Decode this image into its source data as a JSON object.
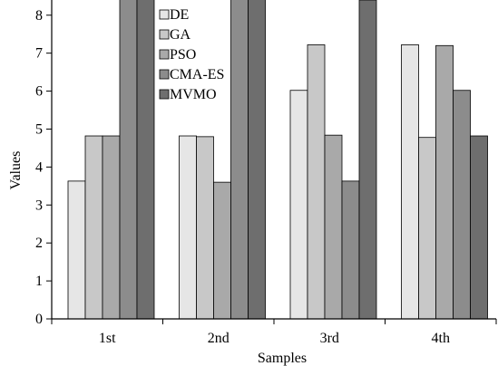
{
  "chart_data": {
    "type": "bar",
    "title": "",
    "xlabel": "Samples",
    "ylabel": "Values",
    "categories": [
      "1st",
      "2nd",
      "3rd",
      "4th"
    ],
    "ylim": [
      0,
      8.4
    ],
    "yticks": [
      0,
      1,
      2,
      3,
      4,
      5,
      6,
      7,
      8
    ],
    "grid": false,
    "legend_position": "top-left",
    "series": [
      {
        "name": "DE",
        "color": "#e6e6e6",
        "values": [
          3.63,
          4.82,
          6.02,
          7.22
        ]
      },
      {
        "name": "GA",
        "color": "#c8c8c8",
        "values": [
          4.82,
          4.8,
          7.22,
          4.78
        ]
      },
      {
        "name": "PSO",
        "color": "#a9a9a9",
        "values": [
          4.82,
          3.6,
          4.84,
          7.2
        ]
      },
      {
        "name": "CMA-ES",
        "color": "#8c8c8c",
        "values": [
          8.42,
          8.42,
          3.63,
          6.02
        ]
      },
      {
        "name": "MVMO",
        "color": "#6e6e6e",
        "values": [
          8.43,
          8.42,
          8.4,
          4.82
        ]
      }
    ]
  }
}
